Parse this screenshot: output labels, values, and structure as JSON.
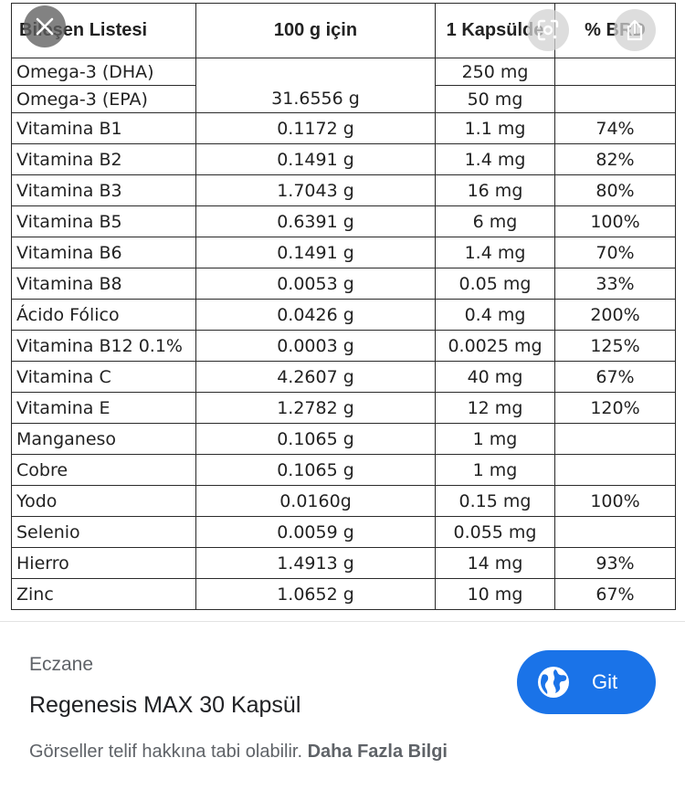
{
  "table": {
    "headers": [
      "Bileşen Listesi",
      "100 g için",
      "1 Kapsülde",
      "% BRD"
    ],
    "rows": [
      {
        "name": "Omega-3 (DHA)",
        "per100": "",
        "percap": "250 mg",
        "brd": ""
      },
      {
        "name": "Omega-3 (EPA)",
        "per100": "31.6556 g",
        "percap": "50 mg",
        "brd": ""
      },
      {
        "name": "Vitamina B1",
        "per100": "0.1172 g",
        "percap": "1.1 mg",
        "brd": "74%"
      },
      {
        "name": "Vitamina B2",
        "per100": "0.1491 g",
        "percap": "1.4 mg",
        "brd": "82%"
      },
      {
        "name": "Vitamina B3",
        "per100": "1.7043 g",
        "percap": "16 mg",
        "brd": "80%"
      },
      {
        "name": "Vitamina B5",
        "per100": "0.6391 g",
        "percap": "6 mg",
        "brd": "100%"
      },
      {
        "name": "Vitamina B6",
        "per100": "0.1491 g",
        "percap": "1.4 mg",
        "brd": "70%"
      },
      {
        "name": "Vitamina B8",
        "per100": "0.0053 g",
        "percap": "0.05 mg",
        "brd": "33%"
      },
      {
        "name": "Ácido Fólico",
        "per100": "0.0426 g",
        "percap": "0.4 mg",
        "brd": "200%"
      },
      {
        "name": "Vitamina B12 0.1%",
        "per100": "0.0003 g",
        "percap": "0.0025 mg",
        "brd": "125%"
      },
      {
        "name": "Vitamina C",
        "per100": "4.2607 g",
        "percap": "40 mg",
        "brd": "67%"
      },
      {
        "name": "Vitamina E",
        "per100": "1.2782 g",
        "percap": "12 mg",
        "brd": "120%"
      },
      {
        "name": "Manganeso",
        "per100": "0.1065 g",
        "percap": "1 mg",
        "brd": ""
      },
      {
        "name": "Cobre",
        "per100": "0.1065 g",
        "percap": "1 mg",
        "brd": ""
      },
      {
        "name": "Yodo",
        "per100": "0.0160g",
        "percap": "0.15 mg",
        "brd": "100%"
      },
      {
        "name": "Selenio",
        "per100": "0.0059 g",
        "percap": "0.055 mg",
        "brd": ""
      },
      {
        "name": "Hierro",
        "per100": "1.4913 g",
        "percap": "14 mg",
        "brd": "93%"
      },
      {
        "name": "Zinc",
        "per100": "1.0652 g",
        "percap": "10 mg",
        "brd": "67%"
      }
    ]
  },
  "overlay": {
    "close_icon": "close-icon",
    "lens_icon": "lens-icon",
    "share_icon": "share-icon"
  },
  "info": {
    "source": "Eczane",
    "title": "Regenesis MAX 30 Kapsül",
    "copyright_text": "Görseller telif hakkına tabi olabilir.",
    "more_info_link": "Daha Fazla Bilgi",
    "visit_label": "Git",
    "visit_icon": "globe-icon"
  },
  "colors": {
    "visit_button": "#1a73e8",
    "secondary_text": "#5f6368",
    "primary_text": "#202124"
  }
}
